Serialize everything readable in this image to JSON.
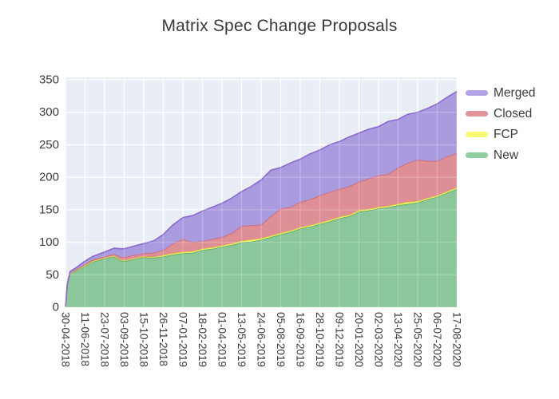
{
  "title": "Matrix Spec Change Proposals",
  "legend": {
    "items_top_to_bottom": [
      "Merged",
      "Closed",
      "FCP",
      "New"
    ]
  },
  "colors": {
    "plot_background": "#e9edf5",
    "grid": "#ffffff",
    "title_text": "#3a3a3a",
    "tick_text": "#3d3d3d"
  },
  "chart_data": {
    "type": "area",
    "stacked": true,
    "title": "Matrix Spec Change Proposals",
    "xlabel": "",
    "ylabel": "",
    "ylim": [
      0,
      350
    ],
    "grid": true,
    "legend_position": "right",
    "y_ticks": [
      0,
      50,
      100,
      150,
      200,
      250,
      300,
      350
    ],
    "x_tick_labels": [
      "30-04-2018",
      "11-06-2018",
      "23-07-2018",
      "03-09-2018",
      "15-10-2018",
      "26-11-2018",
      "07-01-2019",
      "18-02-2019",
      "01-04-2019",
      "13-05-2019",
      "24-06-2019",
      "05-08-2019",
      "16-09-2019",
      "28-10-2019",
      "09-12-2019",
      "20-01-2020",
      "02-03-2020",
      "13-04-2020",
      "25-05-2020",
      "06-07-2020",
      "17-08-2020"
    ],
    "x_range_days": 840,
    "x": [
      "30-04-2018",
      "04-05-2018",
      "10-05-2018",
      "21-05-2018",
      "11-06-2018",
      "27-06-2018",
      "23-07-2018",
      "13-08-2018",
      "24-08-2018",
      "03-09-2018",
      "24-09-2018",
      "15-10-2018",
      "05-11-2018",
      "26-11-2018",
      "17-12-2018",
      "07-01-2019",
      "28-01-2019",
      "18-02-2019",
      "11-03-2019",
      "01-04-2019",
      "22-04-2019",
      "13-05-2019",
      "03-06-2019",
      "24-06-2019",
      "15-07-2019",
      "05-08-2019",
      "26-08-2019",
      "16-09-2019",
      "07-10-2019",
      "28-10-2019",
      "18-11-2019",
      "09-12-2019",
      "30-12-2019",
      "20-01-2020",
      "10-02-2020",
      "02-03-2020",
      "23-03-2020",
      "13-04-2020",
      "04-05-2020",
      "25-05-2020",
      "15-06-2020",
      "06-07-2020",
      "27-07-2020",
      "17-08-2020"
    ],
    "series": [
      {
        "name": "New",
        "fill": "#8bc79b",
        "line": "#55a86b",
        "legend_color": "#90cf9f",
        "values": [
          1,
          35,
          52,
          55,
          63,
          70,
          75,
          78,
          73,
          71,
          74,
          77,
          76,
          78,
          81,
          83,
          84,
          88,
          90,
          93,
          96,
          100,
          101,
          104,
          108,
          112,
          116,
          121,
          124,
          128,
          132,
          137,
          140,
          147,
          149,
          152,
          154,
          157,
          159,
          161,
          166,
          170,
          176,
          182
        ]
      },
      {
        "name": "FCP",
        "fill": "#f8f76e",
        "line": "#e3de32",
        "legend_color": "#fafa70",
        "values": [
          0,
          0,
          0,
          1,
          1,
          1,
          1,
          1,
          1,
          1,
          1,
          1,
          1,
          2,
          2,
          2,
          2,
          2,
          2,
          2,
          2,
          2,
          3,
          2,
          2,
          2,
          2,
          2,
          2,
          2,
          2,
          2,
          2,
          2,
          2,
          2,
          2,
          2,
          3,
          2,
          2,
          2,
          2,
          2
        ]
      },
      {
        "name": "Closed",
        "fill": "#de8f96",
        "line": "#cd6675",
        "legend_color": "#e2949c",
        "values": [
          0,
          0,
          1,
          1,
          2,
          2,
          2,
          3,
          4,
          5,
          5,
          5,
          7,
          8,
          15,
          20,
          14,
          12,
          13,
          13,
          16,
          23,
          22,
          21,
          30,
          38,
          36,
          39,
          40,
          42,
          43,
          43,
          44,
          44,
          47,
          49,
          49,
          56,
          60,
          64,
          57,
          53,
          54,
          53
        ]
      },
      {
        "name": "Merged",
        "fill": "#aa9bdf",
        "line": "#8a6ad0",
        "legend_color": "#b3a3e6",
        "values": [
          0,
          1,
          2,
          3,
          5,
          5,
          7,
          9,
          12,
          13,
          14,
          15,
          18,
          24,
          29,
          33,
          41,
          46,
          49,
          52,
          54,
          53,
          60,
          69,
          71,
          63,
          68,
          66,
          70,
          70,
          73,
          73,
          76,
          75,
          76,
          75,
          81,
          74,
          75,
          73,
          81,
          88,
          91,
          95
        ]
      }
    ]
  }
}
